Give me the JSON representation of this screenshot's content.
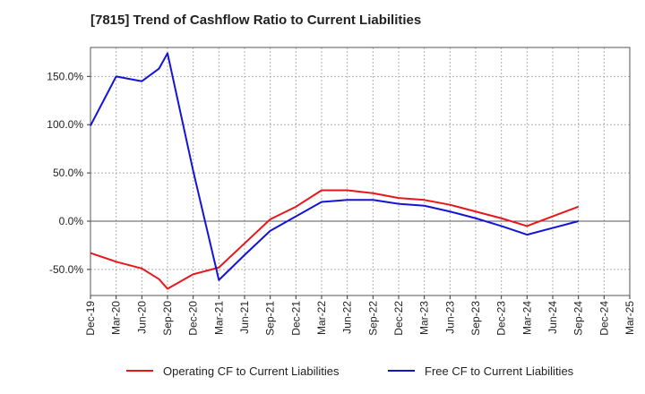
{
  "chart_data": {
    "type": "line",
    "title": "[7815]  Trend of Cashflow Ratio to Current Liabilities",
    "xlabel": "",
    "ylabel": "",
    "x_ticks": [
      "Dec-19",
      "Mar-20",
      "Jun-20",
      "Sep-20",
      "Dec-20",
      "Mar-21",
      "Jun-21",
      "Sep-21",
      "Dec-21",
      "Mar-22",
      "Jun-22",
      "Sep-22",
      "Dec-22",
      "Mar-23",
      "Jun-23",
      "Sep-23",
      "Dec-23",
      "Mar-24",
      "Jun-24",
      "Sep-24",
      "Dec-24",
      "Mar-25"
    ],
    "y_ticks": [
      {
        "value": 150,
        "label": "150.0%"
      },
      {
        "value": 100,
        "label": "100.0%"
      },
      {
        "value": 50,
        "label": "50.0%"
      },
      {
        "value": 0,
        "label": "0.0%"
      },
      {
        "value": -50,
        "label": "-50.0%"
      }
    ],
    "ylim": [
      -77,
      180
    ],
    "grid": true,
    "legend_position": "bottom",
    "series": [
      {
        "name": "Operating CF to Current Liabilities",
        "color": "#e8161b",
        "points": [
          {
            "x": "Dec-19",
            "y": -33
          },
          {
            "x": "Mar-20",
            "y": -42
          },
          {
            "x": "Jun-20",
            "y": -49
          },
          {
            "x": "Aug-20",
            "y": -60
          },
          {
            "x": "Sep-20",
            "y": -70
          },
          {
            "x": "Dec-20",
            "y": -55
          },
          {
            "x": "Mar-21",
            "y": -48
          },
          {
            "x": "Jun-21",
            "y": -23
          },
          {
            "x": "Sep-21",
            "y": 2
          },
          {
            "x": "Dec-21",
            "y": 15
          },
          {
            "x": "Mar-22",
            "y": 32
          },
          {
            "x": "Jun-22",
            "y": 32
          },
          {
            "x": "Sep-22",
            "y": 29
          },
          {
            "x": "Dec-22",
            "y": 24
          },
          {
            "x": "Mar-23",
            "y": 22
          },
          {
            "x": "Jun-23",
            "y": 17
          },
          {
            "x": "Sep-23",
            "y": 10
          },
          {
            "x": "Dec-23",
            "y": 3
          },
          {
            "x": "Mar-24",
            "y": -5
          },
          {
            "x": "Jun-24",
            "y": 5
          },
          {
            "x": "Sep-24",
            "y": 15
          }
        ]
      },
      {
        "name": "Free CF to Current Liabilities",
        "color": "#1414d9",
        "points": [
          {
            "x": "Dec-19",
            "y": 99
          },
          {
            "x": "Mar-20",
            "y": 150
          },
          {
            "x": "Jun-20",
            "y": 145
          },
          {
            "x": "Aug-20",
            "y": 158
          },
          {
            "x": "Sep-20",
            "y": 174
          },
          {
            "x": "Dec-20",
            "y": 52
          },
          {
            "x": "Mar-21",
            "y": -61
          },
          {
            "x": "Jun-21",
            "y": -35
          },
          {
            "x": "Sep-21",
            "y": -10
          },
          {
            "x": "Dec-21",
            "y": 5
          },
          {
            "x": "Mar-22",
            "y": 20
          },
          {
            "x": "Jun-22",
            "y": 22
          },
          {
            "x": "Sep-22",
            "y": 22
          },
          {
            "x": "Dec-22",
            "y": 18
          },
          {
            "x": "Mar-23",
            "y": 16
          },
          {
            "x": "Jun-23",
            "y": 10
          },
          {
            "x": "Sep-23",
            "y": 3
          },
          {
            "x": "Dec-23",
            "y": -5
          },
          {
            "x": "Mar-24",
            "y": -14
          },
          {
            "x": "Jun-24",
            "y": -7
          },
          {
            "x": "Sep-24",
            "y": 0
          }
        ]
      }
    ]
  }
}
